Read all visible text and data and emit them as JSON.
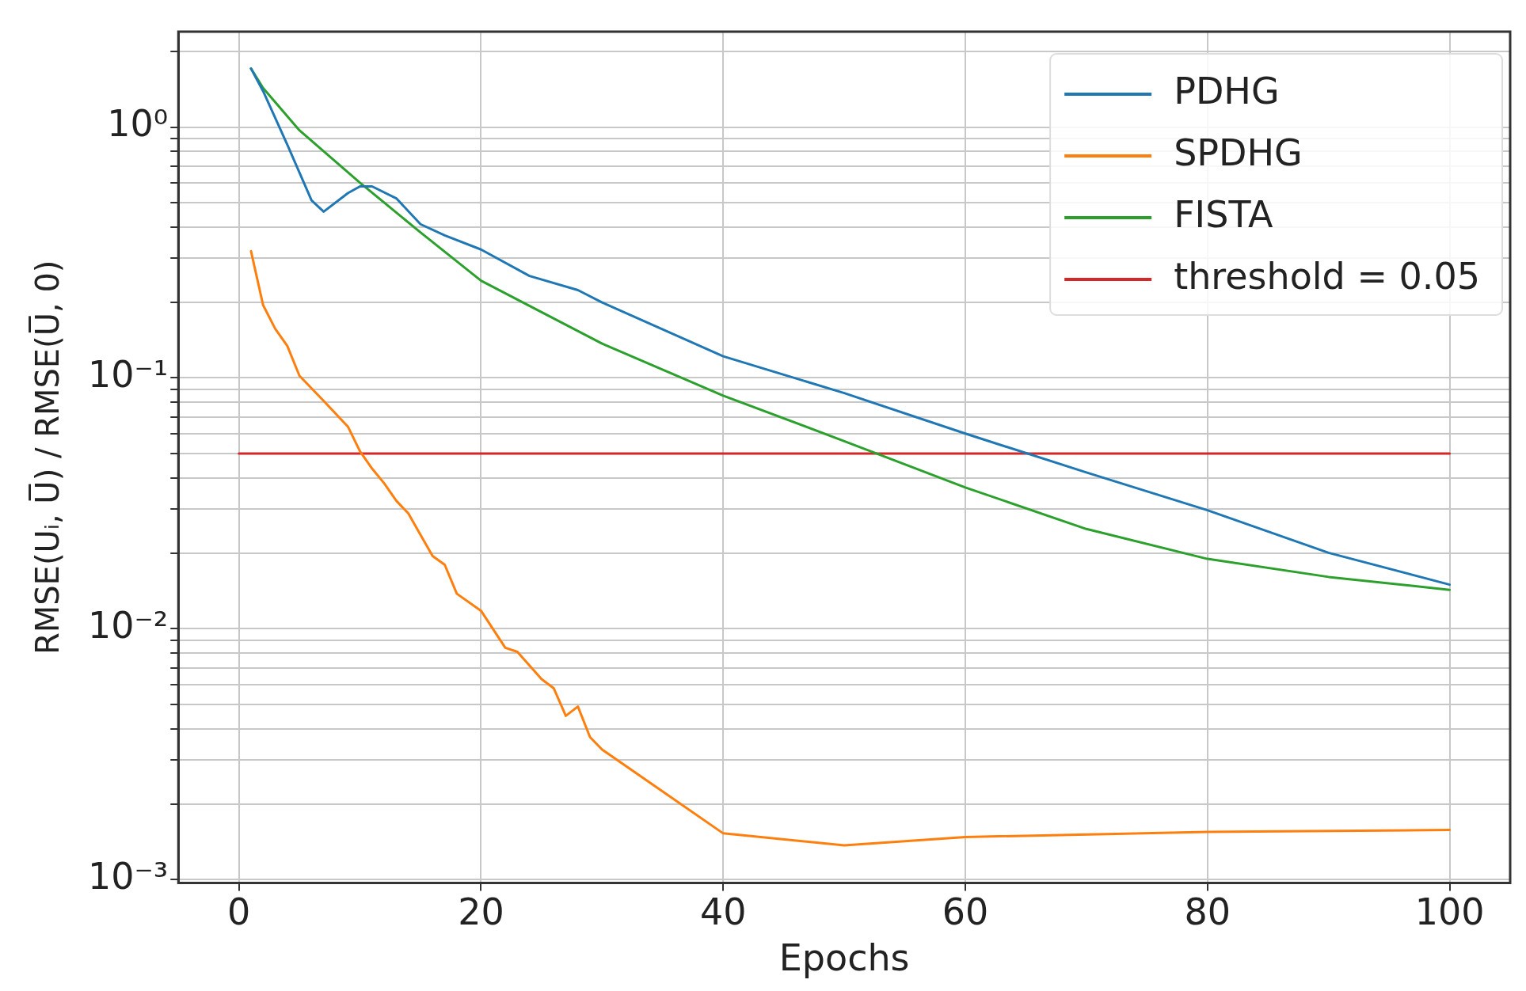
{
  "chart_data": {
    "type": "line",
    "xlabel": "Epochs",
    "ylabel": "RMSE(Uᵢ, U̅) / RMSE(U̅, 0)",
    "log": "y",
    "grid": true,
    "legend": "top right",
    "marker": "none",
    "line_style": "solid",
    "xlim": [
      -5,
      105
    ],
    "xticks": [
      0,
      20,
      40,
      60,
      80,
      100
    ],
    "ylim": [
      0.00097,
      2.4
    ],
    "yticks": [
      {
        "value": 0.001,
        "label": "10⁻³"
      },
      {
        "value": 0.002,
        "label": null
      },
      {
        "value": 0.003,
        "label": null
      },
      {
        "value": 0.004,
        "label": null
      },
      {
        "value": 0.005,
        "label": null
      },
      {
        "value": 0.006,
        "label": null
      },
      {
        "value": 0.007,
        "label": null
      },
      {
        "value": 0.008,
        "label": null
      },
      {
        "value": 0.009,
        "label": null
      },
      {
        "value": 0.01,
        "label": "10⁻²"
      },
      {
        "value": 0.02,
        "label": null
      },
      {
        "value": 0.03,
        "label": null
      },
      {
        "value": 0.04,
        "label": null
      },
      {
        "value": 0.05,
        "label": null
      },
      {
        "value": 0.06,
        "label": null
      },
      {
        "value": 0.07,
        "label": null
      },
      {
        "value": 0.08,
        "label": null
      },
      {
        "value": 0.09,
        "label": null
      },
      {
        "value": 0.1,
        "label": "10⁻¹"
      },
      {
        "value": 0.2,
        "label": null
      },
      {
        "value": 0.3,
        "label": null
      },
      {
        "value": 0.4,
        "label": null
      },
      {
        "value": 0.5,
        "label": null
      },
      {
        "value": 0.6,
        "label": null
      },
      {
        "value": 0.7,
        "label": null
      },
      {
        "value": 0.8,
        "label": null
      },
      {
        "value": 0.9,
        "label": null
      },
      {
        "value": 1,
        "label": "10⁰"
      },
      {
        "value": 2,
        "label": null
      }
    ],
    "series": [
      {
        "name": "PDHG",
        "color": "#1f77b4",
        "x": [
          1,
          2,
          4,
          6,
          7,
          9,
          10,
          11,
          13,
          15,
          17,
          20,
          24,
          28,
          30,
          40,
          50,
          60,
          70,
          80,
          90,
          100
        ],
        "values": [
          1.71,
          1.39,
          0.85,
          0.51,
          0.46,
          0.545,
          0.58,
          0.58,
          0.52,
          0.41,
          0.37,
          0.325,
          0.255,
          0.224,
          0.2,
          0.122,
          0.087,
          0.06,
          0.042,
          0.0297,
          0.0201,
          0.015
        ]
      },
      {
        "name": "SPDHG",
        "color": "#ff7f0e",
        "x": [
          1,
          2,
          3,
          4,
          5,
          7,
          9,
          10,
          11,
          12,
          13,
          14,
          15,
          16,
          17,
          18,
          20,
          22,
          23,
          25,
          26,
          27,
          28,
          29,
          30,
          40,
          50,
          60,
          80,
          100
        ],
        "values": [
          0.32,
          0.195,
          0.157,
          0.134,
          0.102,
          0.081,
          0.064,
          0.051,
          0.0435,
          0.038,
          0.0324,
          0.0288,
          0.0237,
          0.0195,
          0.018,
          0.0138,
          0.0118,
          0.0084,
          0.0081,
          0.0063,
          0.0058,
          0.0045,
          0.0049,
          0.0037,
          0.0033,
          0.00153,
          0.00137,
          0.00148,
          0.00155,
          0.00158
        ]
      },
      {
        "name": "FISTA",
        "color": "#2ca02c",
        "x": [
          1,
          2,
          5,
          10,
          15,
          20,
          30,
          40,
          50,
          60,
          70,
          80,
          90,
          100
        ],
        "values": [
          1.71,
          1.43,
          0.97,
          0.6,
          0.38,
          0.244,
          0.137,
          0.085,
          0.056,
          0.0366,
          0.025,
          0.019,
          0.0161,
          0.0143
        ]
      },
      {
        "name": "threshold = 0.05",
        "color": "#d62728",
        "x": [
          0,
          100
        ],
        "values": [
          0.05,
          0.05
        ]
      }
    ]
  }
}
